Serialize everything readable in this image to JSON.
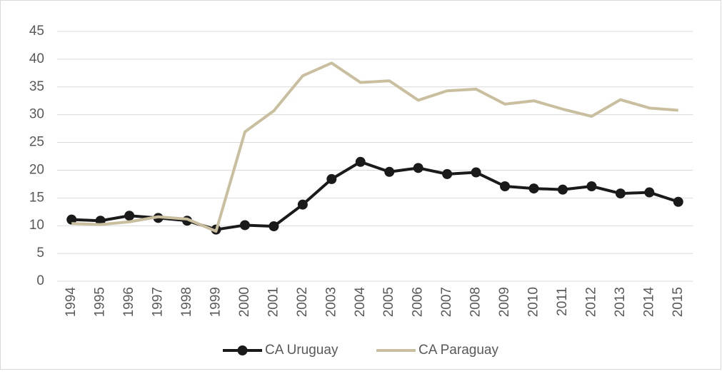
{
  "chart_data": {
    "type": "line",
    "categories": [
      "1994",
      "1995",
      "1996",
      "1997",
      "1998",
      "1999",
      "2000",
      "2001",
      "2002",
      "2003",
      "2004",
      "2005",
      "2006",
      "2007",
      "2008",
      "2009",
      "2010",
      "2011",
      "2012",
      "2013",
      "2014",
      "2015"
    ],
    "series": [
      {
        "name": "CA Uruguay",
        "color": "#1a1a1a",
        "marker": true,
        "values": [
          11.1,
          10.9,
          11.8,
          11.4,
          10.9,
          9.3,
          10.1,
          9.9,
          13.8,
          18.4,
          21.5,
          19.7,
          20.4,
          19.3,
          19.6,
          17.1,
          16.7,
          16.5,
          17.1,
          15.8,
          16.0,
          14.3
        ]
      },
      {
        "name": "CA Paraguay",
        "color": "#c9bf9f",
        "marker": false,
        "values": [
          10.4,
          10.2,
          10.7,
          11.6,
          11.2,
          9.0,
          26.9,
          30.7,
          37.0,
          39.3,
          35.8,
          36.1,
          32.6,
          34.3,
          34.6,
          31.9,
          32.5,
          31.0,
          29.7,
          32.7,
          31.2,
          30.8
        ]
      }
    ],
    "ylim": [
      0,
      45
    ],
    "yticks": [
      0,
      5,
      10,
      15,
      20,
      25,
      30,
      35,
      40,
      45
    ],
    "grid": true,
    "legend": "bottom"
  }
}
